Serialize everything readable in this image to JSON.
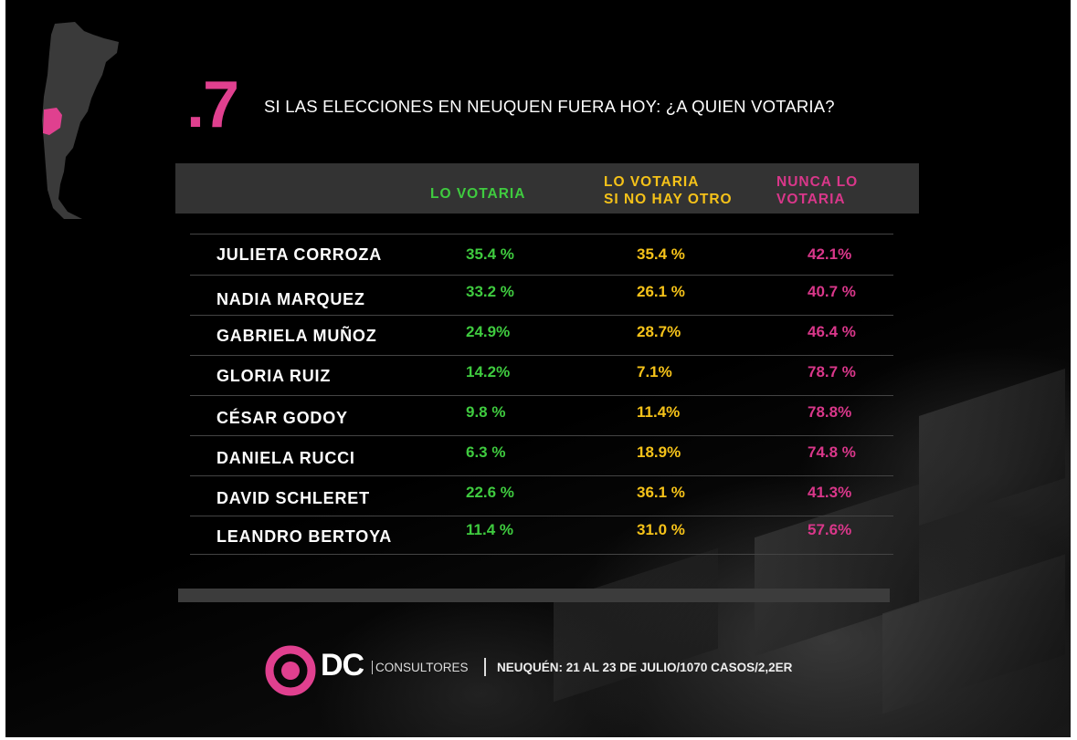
{
  "slide": {
    "number": ".7",
    "title": "SI LAS ELECCIONES EN NEUQUEN FUERA HOY: ¿A QUIEN VOTARIA?",
    "footer": {
      "logo_text": "DC",
      "brand": "CONSULTORES",
      "info": "NEUQUÉN: 21 AL 23 DE JULIO/1070 CASOS/2,2ER"
    }
  },
  "colors": {
    "green": "#3fcb3f",
    "yellow": "#f5c219",
    "pink": "#d9378a"
  },
  "chart_data": {
    "type": "table",
    "title": "SI LAS ELECCIONES EN NEUQUEN FUERA HOY: ¿A QUIEN VOTARIA?",
    "columns": [
      {
        "line1": "LO VOTARIA",
        "line2": ""
      },
      {
        "line1": "LO VOTARIA",
        "line2": "SI NO HAY OTRO"
      },
      {
        "line1": "NUNCA LO",
        "line2": "VOTARIA"
      }
    ],
    "rows": [
      {
        "name": "JULIETA CORROZA",
        "values": [
          "35.4 %",
          "35.4 %",
          "42.1%"
        ]
      },
      {
        "name": "NADIA MARQUEZ",
        "values": [
          "33.2 %",
          "26.1 %",
          "40.7 %"
        ]
      },
      {
        "name": "GABRIELA MUÑOZ",
        "values": [
          "24.9%",
          "28.7%",
          "46.4 %"
        ]
      },
      {
        "name": "GLORIA RUIZ",
        "values": [
          "14.2%",
          "7.1%",
          "78.7 %"
        ]
      },
      {
        "name": "CÉSAR GODOY",
        "values": [
          "9.8 %",
          "11.4%",
          "78.8%"
        ]
      },
      {
        "name": "DANIELA RUCCI",
        "values": [
          "6.3 %",
          "18.9%",
          "74.8 %"
        ]
      },
      {
        "name": "DAVID SCHLERET",
        "values": [
          "22.6 %",
          "36.1 %",
          "41.3%"
        ]
      },
      {
        "name": "LEANDRO BERTOYA",
        "values": [
          "11.4 %",
          "31.0 %",
          "57.6%"
        ]
      }
    ]
  }
}
